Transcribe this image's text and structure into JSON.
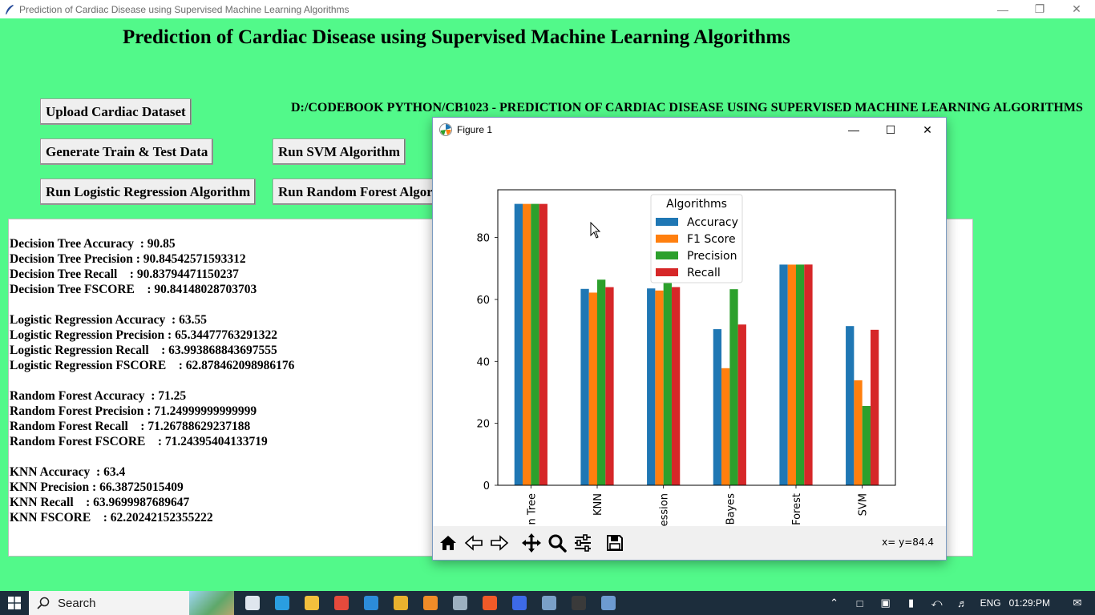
{
  "window": {
    "title": "Prediction of Cardiac Disease using Supervised Machine Learning Algorithms"
  },
  "app": {
    "heading": "Prediction of Cardiac Disease using Supervised Machine Learning Algorithms",
    "path_label": "D:/CODEBOOK PYTHON/CB1023 - PREDICTION OF CARDIAC DISEASE USING SUPERVISED MACHINE LEARNING ALGORITHMS",
    "buttons": {
      "upload": "Upload Cardiac Dataset",
      "generate": "Generate Train & Test Data",
      "svm": "Run SVM Algorithm",
      "logistic": "Run Logistic Regression Algorithm",
      "random_forest": "Run Random Forest Algorithm"
    },
    "results": [
      "Decision Tree Accuracy  : 90.85",
      "Decision Tree Precision : 90.84542571593312",
      "Decision Tree Recall    : 90.83794471150237",
      "Decision Tree FSCORE    : 90.84148028703703",
      "",
      "Logistic Regression Accuracy  : 63.55",
      "Logistic Regression Precision : 65.34477763291322",
      "Logistic Regression Recall    : 63.993868843697555",
      "Logistic Regression FSCORE    : 62.878462098986176",
      "",
      "Random Forest Accuracy  : 71.25",
      "Random Forest Precision : 71.24999999999999",
      "Random Forest Recall    : 71.26788629237188",
      "Random Forest FSCORE    : 71.24395404133719",
      "",
      "KNN Accuracy  : 63.4",
      "KNN Precision : 66.38725015409",
      "KNN Recall    : 63.9699987689647",
      "KNN FSCORE    : 62.20242152355222"
    ]
  },
  "figure": {
    "title": "Figure 1",
    "coords": "x= y=84.4",
    "toolbar": [
      "home-icon",
      "back-icon",
      "forward-icon",
      "pan-icon",
      "zoom-icon",
      "configure-icon",
      "save-icon"
    ]
  },
  "chart_data": {
    "type": "bar",
    "categories": [
      "Decision Tree",
      "KNN",
      "Logistic Regression",
      "Naive Bayes",
      "Random Forest",
      "SVM"
    ],
    "visible_tick_labels": [
      "n Tree",
      "KNN",
      "ession",
      "Bayes",
      "Forest",
      "SVM"
    ],
    "series": [
      {
        "name": "Accuracy",
        "color": "#1f77b4",
        "values": [
          90.85,
          63.4,
          63.55,
          50.4,
          71.25,
          51.4
        ]
      },
      {
        "name": "F1 Score",
        "color": "#ff7f0e",
        "values": [
          90.84,
          62.2,
          62.88,
          37.8,
          71.24,
          33.9
        ]
      },
      {
        "name": "Precision",
        "color": "#2ca02c",
        "values": [
          90.85,
          66.39,
          65.34,
          63.3,
          71.25,
          25.6
        ]
      },
      {
        "name": "Recall",
        "color": "#d62728",
        "values": [
          90.84,
          63.97,
          63.99,
          51.9,
          71.27,
          50.2
        ]
      }
    ],
    "legend_title": "Algorithms",
    "legend_position": "top-center",
    "yticks": [
      0,
      20,
      40,
      60,
      80
    ],
    "ylim": [
      0,
      95.4
    ],
    "grid": false
  },
  "taskbar": {
    "search_placeholder": "Search",
    "language": "ENG",
    "time": "01:29:PM",
    "apps": [
      {
        "name": "task-view",
        "color": "#dfe6ee"
      },
      {
        "name": "edge",
        "color": "#2a9ee0"
      },
      {
        "name": "file-explorer",
        "color": "#f3c03d"
      },
      {
        "name": "app-red",
        "color": "#e64a3c"
      },
      {
        "name": "vscode",
        "color": "#2c8cd9"
      },
      {
        "name": "chrome",
        "color": "#e8b22e"
      },
      {
        "name": "search-app",
        "color": "#f08c28"
      },
      {
        "name": "app-gray",
        "color": "#9cb0c0"
      },
      {
        "name": "brave",
        "color": "#f05a28"
      },
      {
        "name": "app-blue",
        "color": "#3d6ae8"
      },
      {
        "name": "app-monitor",
        "color": "#7aa0c8"
      },
      {
        "name": "terminal",
        "color": "#3a3a3a"
      },
      {
        "name": "python",
        "color": "#6d9bd1"
      }
    ]
  }
}
